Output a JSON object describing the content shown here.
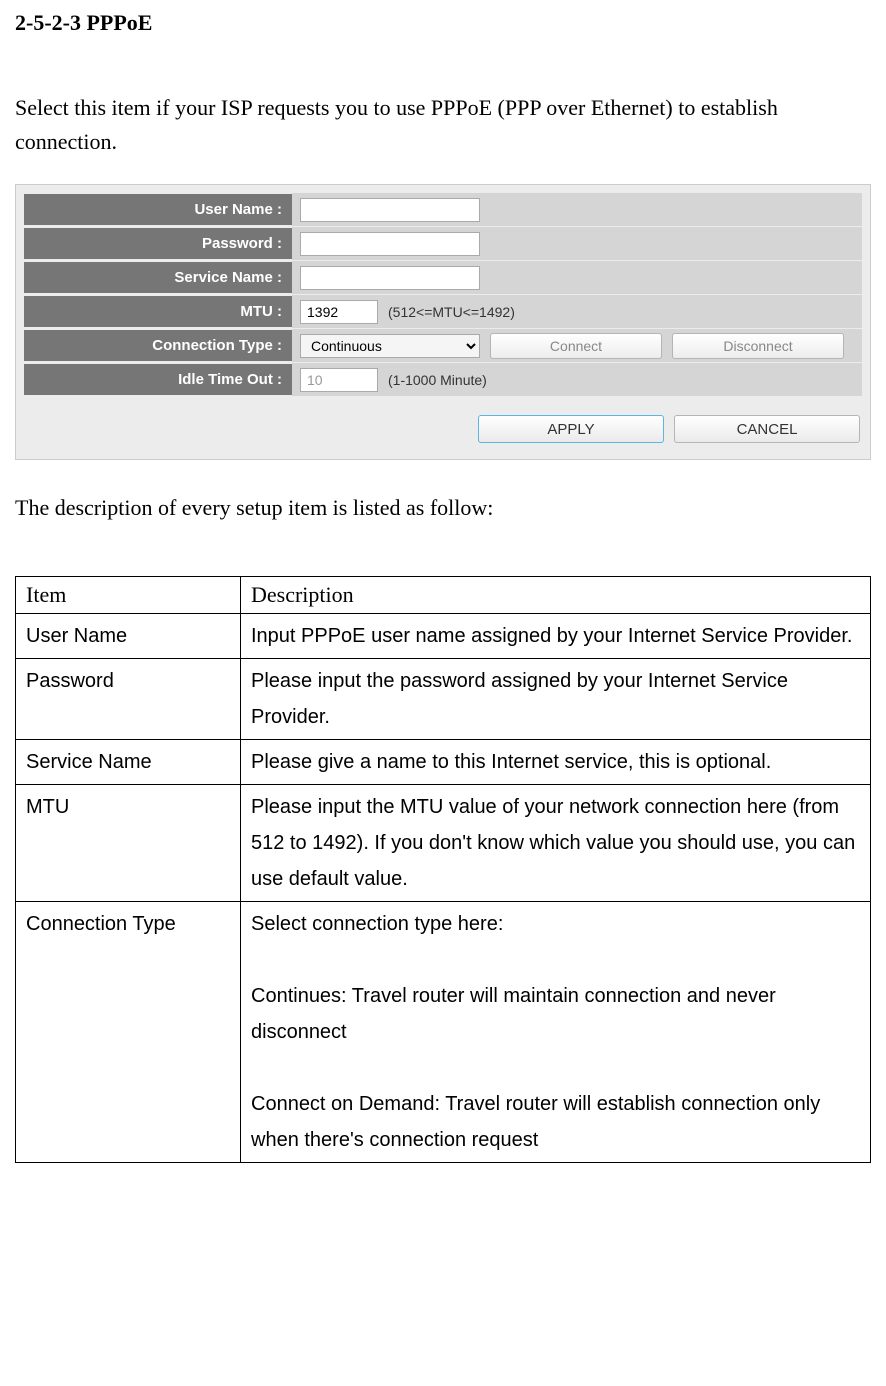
{
  "heading": "2-5-2-3 PPPoE",
  "intro": "Select this item if your ISP requests you to use PPPoE (PPP over Ethernet) to establish connection.",
  "config": {
    "rows": [
      {
        "label": "User Name :",
        "value": "",
        "type": "text",
        "hint": ""
      },
      {
        "label": "Password :",
        "value": "",
        "type": "password",
        "hint": ""
      },
      {
        "label": "Service Name :",
        "value": "",
        "type": "text",
        "hint": ""
      },
      {
        "label": "MTU :",
        "value": "1392",
        "type": "smalltext",
        "hint": "(512<=MTU<=1492)"
      },
      {
        "label": "Connection Type :",
        "value": "Continuous",
        "type": "select",
        "buttons": [
          "Connect",
          "Disconnect"
        ]
      },
      {
        "label": "Idle Time Out :",
        "value": "10",
        "type": "smalltext-disabled",
        "hint": "(1-1000 Minute)"
      }
    ],
    "apply": "APPLY",
    "cancel": "CANCEL"
  },
  "description_intro": "The description of every setup item is listed as follow:",
  "table": {
    "headers": [
      "Item",
      "Description"
    ],
    "rows": [
      {
        "item": "User Name",
        "desc": "Input PPPoE user name assigned by your Internet Service Provider."
      },
      {
        "item": "Password",
        "desc": "Please input the password assigned by your Internet Service Provider."
      },
      {
        "item": "Service Name",
        "desc": "Please give a name to this Internet service, this is optional."
      },
      {
        "item": "MTU",
        "desc": "Please input the MTU value of your network connection here (from 512 to 1492). If you don't know which value you should use, you can use default value."
      },
      {
        "item": "Connection Type",
        "desc": "Select connection type here:\n\nContinues: Travel router will maintain connection and never disconnect\n\nConnect on Demand: Travel router will establish connection only when there's connection request"
      }
    ]
  }
}
